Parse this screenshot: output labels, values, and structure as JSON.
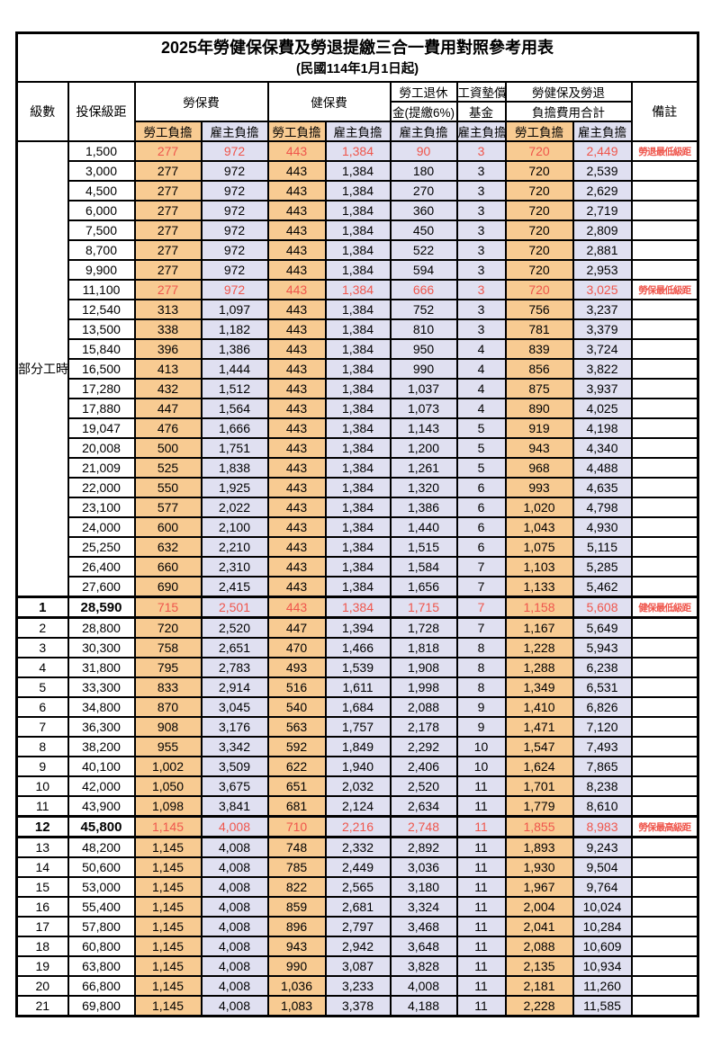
{
  "title": "2025年勞健保保費及勞退提繳三合一費用對照參考用表",
  "subtitle": "(民國114年1月1日起)",
  "colors": {
    "employee_col_bg": "#F8CB92",
    "employer_col_bg": "#E0E0F1",
    "highlight_text": "#EF564C",
    "grid": "#000000"
  },
  "table": {
    "header": {
      "level": "級數",
      "bracket": "投保級距",
      "labor_ins": "勞保費",
      "health_ins": "健保費",
      "pension_line1": "勞工退休",
      "pension_line2": "金(提繳6%)",
      "wage_fund_line1": "工資墊償",
      "wage_fund_line2": "基金",
      "total_line1": "勞健保及勞退",
      "total_line2": "負擔費用合計",
      "employee": "勞工負擔",
      "employer": "雇主負擔",
      "remark": "備註"
    },
    "part_time_label": "部分工時",
    "part_time_span": 23,
    "rows": [
      {
        "level": "",
        "bracket": "1,500",
        "values": [
          "277",
          "972",
          "443",
          "1,384",
          "90",
          "3",
          "720",
          "2,449"
        ],
        "note": "勞退最低級距",
        "red": true,
        "emph": false
      },
      {
        "level": "",
        "bracket": "3,000",
        "values": [
          "277",
          "972",
          "443",
          "1,384",
          "180",
          "3",
          "720",
          "2,539"
        ],
        "note": "",
        "red": false,
        "emph": false
      },
      {
        "level": "",
        "bracket": "4,500",
        "values": [
          "277",
          "972",
          "443",
          "1,384",
          "270",
          "3",
          "720",
          "2,629"
        ],
        "note": "",
        "red": false,
        "emph": false
      },
      {
        "level": "",
        "bracket": "6,000",
        "values": [
          "277",
          "972",
          "443",
          "1,384",
          "360",
          "3",
          "720",
          "2,719"
        ],
        "note": "",
        "red": false,
        "emph": false
      },
      {
        "level": "",
        "bracket": "7,500",
        "values": [
          "277",
          "972",
          "443",
          "1,384",
          "450",
          "3",
          "720",
          "2,809"
        ],
        "note": "",
        "red": false,
        "emph": false
      },
      {
        "level": "",
        "bracket": "8,700",
        "values": [
          "277",
          "972",
          "443",
          "1,384",
          "522",
          "3",
          "720",
          "2,881"
        ],
        "note": "",
        "red": false,
        "emph": false
      },
      {
        "level": "",
        "bracket": "9,900",
        "values": [
          "277",
          "972",
          "443",
          "1,384",
          "594",
          "3",
          "720",
          "2,953"
        ],
        "note": "",
        "red": false,
        "emph": false
      },
      {
        "level": "",
        "bracket": "11,100",
        "values": [
          "277",
          "972",
          "443",
          "1,384",
          "666",
          "3",
          "720",
          "3,025"
        ],
        "note": "勞保最低級距",
        "red": true,
        "emph": false
      },
      {
        "level": "",
        "bracket": "12,540",
        "values": [
          "313",
          "1,097",
          "443",
          "1,384",
          "752",
          "3",
          "756",
          "3,237"
        ],
        "note": "",
        "red": false,
        "emph": false
      },
      {
        "level": "",
        "bracket": "13,500",
        "values": [
          "338",
          "1,182",
          "443",
          "1,384",
          "810",
          "3",
          "781",
          "3,379"
        ],
        "note": "",
        "red": false,
        "emph": false
      },
      {
        "level": "",
        "bracket": "15,840",
        "values": [
          "396",
          "1,386",
          "443",
          "1,384",
          "950",
          "4",
          "839",
          "3,724"
        ],
        "note": "",
        "red": false,
        "emph": false
      },
      {
        "level": "",
        "bracket": "16,500",
        "values": [
          "413",
          "1,444",
          "443",
          "1,384",
          "990",
          "4",
          "856",
          "3,822"
        ],
        "note": "",
        "red": false,
        "emph": false
      },
      {
        "level": "",
        "bracket": "17,280",
        "values": [
          "432",
          "1,512",
          "443",
          "1,384",
          "1,037",
          "4",
          "875",
          "3,937"
        ],
        "note": "",
        "red": false,
        "emph": false
      },
      {
        "level": "",
        "bracket": "17,880",
        "values": [
          "447",
          "1,564",
          "443",
          "1,384",
          "1,073",
          "4",
          "890",
          "4,025"
        ],
        "note": "",
        "red": false,
        "emph": false
      },
      {
        "level": "",
        "bracket": "19,047",
        "values": [
          "476",
          "1,666",
          "443",
          "1,384",
          "1,143",
          "5",
          "919",
          "4,198"
        ],
        "note": "",
        "red": false,
        "emph": false
      },
      {
        "level": "",
        "bracket": "20,008",
        "values": [
          "500",
          "1,751",
          "443",
          "1,384",
          "1,200",
          "5",
          "943",
          "4,340"
        ],
        "note": "",
        "red": false,
        "emph": false
      },
      {
        "level": "",
        "bracket": "21,009",
        "values": [
          "525",
          "1,838",
          "443",
          "1,384",
          "1,261",
          "5",
          "968",
          "4,488"
        ],
        "note": "",
        "red": false,
        "emph": false
      },
      {
        "level": "",
        "bracket": "22,000",
        "values": [
          "550",
          "1,925",
          "443",
          "1,384",
          "1,320",
          "6",
          "993",
          "4,635"
        ],
        "note": "",
        "red": false,
        "emph": false
      },
      {
        "level": "",
        "bracket": "23,100",
        "values": [
          "577",
          "2,022",
          "443",
          "1,384",
          "1,386",
          "6",
          "1,020",
          "4,798"
        ],
        "note": "",
        "red": false,
        "emph": false
      },
      {
        "level": "",
        "bracket": "24,000",
        "values": [
          "600",
          "2,100",
          "443",
          "1,384",
          "1,440",
          "6",
          "1,043",
          "4,930"
        ],
        "note": "",
        "red": false,
        "emph": false
      },
      {
        "level": "",
        "bracket": "25,250",
        "values": [
          "632",
          "2,210",
          "443",
          "1,384",
          "1,515",
          "6",
          "1,075",
          "5,115"
        ],
        "note": "",
        "red": false,
        "emph": false
      },
      {
        "level": "",
        "bracket": "26,400",
        "values": [
          "660",
          "2,310",
          "443",
          "1,384",
          "1,584",
          "7",
          "1,103",
          "5,285"
        ],
        "note": "",
        "red": false,
        "emph": false
      },
      {
        "level": "",
        "bracket": "27,600",
        "values": [
          "690",
          "2,415",
          "443",
          "1,384",
          "1,656",
          "7",
          "1,133",
          "5,462"
        ],
        "note": "",
        "red": false,
        "emph": false
      },
      {
        "level": "1",
        "bracket": "28,590",
        "values": [
          "715",
          "2,501",
          "443",
          "1,384",
          "1,715",
          "7",
          "1,158",
          "5,608"
        ],
        "note": "健保最低級距",
        "red": true,
        "emph": true
      },
      {
        "level": "2",
        "bracket": "28,800",
        "values": [
          "720",
          "2,520",
          "447",
          "1,394",
          "1,728",
          "7",
          "1,167",
          "5,649"
        ],
        "note": "",
        "red": false,
        "emph": false
      },
      {
        "level": "3",
        "bracket": "30,300",
        "values": [
          "758",
          "2,651",
          "470",
          "1,466",
          "1,818",
          "8",
          "1,228",
          "5,943"
        ],
        "note": "",
        "red": false,
        "emph": false
      },
      {
        "level": "4",
        "bracket": "31,800",
        "values": [
          "795",
          "2,783",
          "493",
          "1,539",
          "1,908",
          "8",
          "1,288",
          "6,238"
        ],
        "note": "",
        "red": false,
        "emph": false
      },
      {
        "level": "5",
        "bracket": "33,300",
        "values": [
          "833",
          "2,914",
          "516",
          "1,611",
          "1,998",
          "8",
          "1,349",
          "6,531"
        ],
        "note": "",
        "red": false,
        "emph": false
      },
      {
        "level": "6",
        "bracket": "34,800",
        "values": [
          "870",
          "3,045",
          "540",
          "1,684",
          "2,088",
          "9",
          "1,410",
          "6,826"
        ],
        "note": "",
        "red": false,
        "emph": false
      },
      {
        "level": "7",
        "bracket": "36,300",
        "values": [
          "908",
          "3,176",
          "563",
          "1,757",
          "2,178",
          "9",
          "1,471",
          "7,120"
        ],
        "note": "",
        "red": false,
        "emph": false
      },
      {
        "level": "8",
        "bracket": "38,200",
        "values": [
          "955",
          "3,342",
          "592",
          "1,849",
          "2,292",
          "10",
          "1,547",
          "7,493"
        ],
        "note": "",
        "red": false,
        "emph": false
      },
      {
        "level": "9",
        "bracket": "40,100",
        "values": [
          "1,002",
          "3,509",
          "622",
          "1,940",
          "2,406",
          "10",
          "1,624",
          "7,865"
        ],
        "note": "",
        "red": false,
        "emph": false
      },
      {
        "level": "10",
        "bracket": "42,000",
        "values": [
          "1,050",
          "3,675",
          "651",
          "2,032",
          "2,520",
          "11",
          "1,701",
          "8,238"
        ],
        "note": "",
        "red": false,
        "emph": false
      },
      {
        "level": "11",
        "bracket": "43,900",
        "values": [
          "1,098",
          "3,841",
          "681",
          "2,124",
          "2,634",
          "11",
          "1,779",
          "8,610"
        ],
        "note": "",
        "red": false,
        "emph": false
      },
      {
        "level": "12",
        "bracket": "45,800",
        "values": [
          "1,145",
          "4,008",
          "710",
          "2,216",
          "2,748",
          "11",
          "1,855",
          "8,983"
        ],
        "note": "勞保最高級距",
        "red": true,
        "emph": true
      },
      {
        "level": "13",
        "bracket": "48,200",
        "values": [
          "1,145",
          "4,008",
          "748",
          "2,332",
          "2,892",
          "11",
          "1,893",
          "9,243"
        ],
        "note": "",
        "red": false,
        "emph": false
      },
      {
        "level": "14",
        "bracket": "50,600",
        "values": [
          "1,145",
          "4,008",
          "785",
          "2,449",
          "3,036",
          "11",
          "1,930",
          "9,504"
        ],
        "note": "",
        "red": false,
        "emph": false
      },
      {
        "level": "15",
        "bracket": "53,000",
        "values": [
          "1,145",
          "4,008",
          "822",
          "2,565",
          "3,180",
          "11",
          "1,967",
          "9,764"
        ],
        "note": "",
        "red": false,
        "emph": false
      },
      {
        "level": "16",
        "bracket": "55,400",
        "values": [
          "1,145",
          "4,008",
          "859",
          "2,681",
          "3,324",
          "11",
          "2,004",
          "10,024"
        ],
        "note": "",
        "red": false,
        "emph": false
      },
      {
        "level": "17",
        "bracket": "57,800",
        "values": [
          "1,145",
          "4,008",
          "896",
          "2,797",
          "3,468",
          "11",
          "2,041",
          "10,284"
        ],
        "note": "",
        "red": false,
        "emph": false
      },
      {
        "level": "18",
        "bracket": "60,800",
        "values": [
          "1,145",
          "4,008",
          "943",
          "2,942",
          "3,648",
          "11",
          "2,088",
          "10,609"
        ],
        "note": "",
        "red": false,
        "emph": false
      },
      {
        "level": "19",
        "bracket": "63,800",
        "values": [
          "1,145",
          "4,008",
          "990",
          "3,087",
          "3,828",
          "11",
          "2,135",
          "10,934"
        ],
        "note": "",
        "red": false,
        "emph": false
      },
      {
        "level": "20",
        "bracket": "66,800",
        "values": [
          "1,145",
          "4,008",
          "1,036",
          "3,233",
          "4,008",
          "11",
          "2,181",
          "11,260"
        ],
        "note": "",
        "red": false,
        "emph": false
      },
      {
        "level": "21",
        "bracket": "69,800",
        "values": [
          "1,145",
          "4,008",
          "1,083",
          "3,378",
          "4,188",
          "11",
          "2,228",
          "11,585"
        ],
        "note": "",
        "red": false,
        "emph": false
      }
    ]
  }
}
